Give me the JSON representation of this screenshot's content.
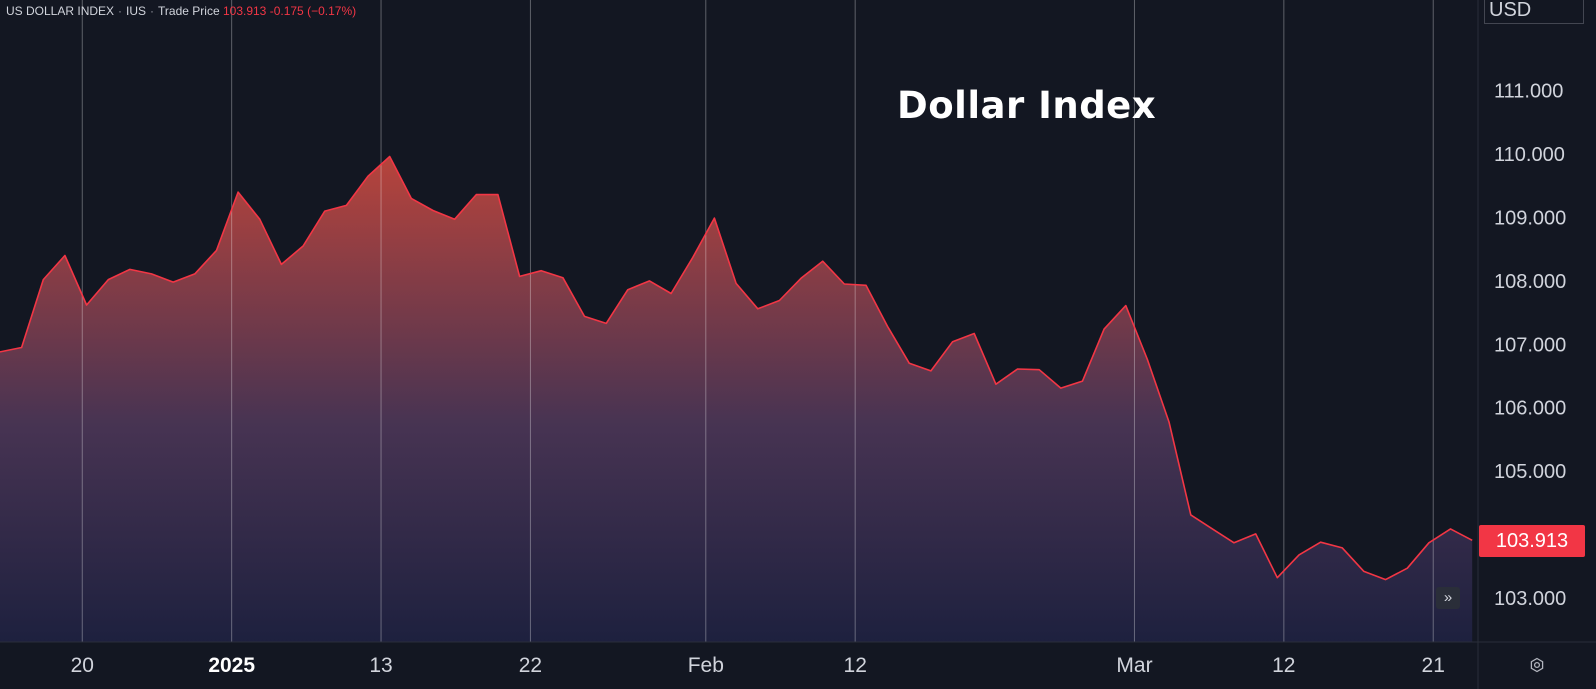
{
  "header": {
    "symbol": "US DOLLAR INDEX",
    "exchange": "IUS",
    "price_type": "Trade Price",
    "last": "103.913",
    "change": "-0.175",
    "change_pct": "(−0.17%)"
  },
  "currency": "USD",
  "last_price_label": "103.913",
  "icons": {
    "scroll": "double-chevron-right-icon",
    "settings": "gear-icon"
  },
  "colors": {
    "background": "#131722",
    "line": "#f23645",
    "fill_top": "#c0463d",
    "fill_bottom": "#1e2140",
    "grid": "#ffffff",
    "text": "#d1d4dc"
  },
  "chart_data": {
    "type": "area",
    "title": "Dollar Index",
    "ylim": [
      102.5,
      112.0
    ],
    "yticks": [
      103,
      104,
      105,
      106,
      107,
      108,
      109,
      110,
      111
    ],
    "ytick_labels": [
      "103.000",
      "104.000",
      "105.000",
      "106.000",
      "107.000",
      "108.000",
      "109.000",
      "110.000",
      "111.000"
    ],
    "x_ticks": [
      {
        "label": "20",
        "index": 3.8,
        "bold": false
      },
      {
        "label": "2025",
        "index": 10.7,
        "bold": true
      },
      {
        "label": "13",
        "index": 17.6,
        "bold": false
      },
      {
        "label": "22",
        "index": 24.5,
        "bold": false
      },
      {
        "label": "Feb",
        "index": 32.6,
        "bold": false
      },
      {
        "label": "12",
        "index": 39.5,
        "bold": false
      },
      {
        "label": "Mar",
        "index": 52.4,
        "bold": false
      },
      {
        "label": "12",
        "index": 59.3,
        "bold": false
      },
      {
        "label": "21",
        "index": 66.2,
        "bold": false
      }
    ],
    "grid": "vertical",
    "values": [
      106.88,
      106.95,
      108.02,
      108.4,
      107.62,
      108.02,
      108.18,
      108.11,
      107.98,
      108.11,
      108.48,
      109.4,
      108.97,
      108.26,
      108.55,
      109.1,
      109.19,
      109.65,
      109.96,
      109.3,
      109.11,
      108.97,
      109.36,
      109.36,
      108.07,
      108.16,
      108.05,
      107.44,
      107.33,
      107.86,
      108.0,
      107.8,
      108.37,
      108.99,
      107.96,
      107.56,
      107.69,
      108.04,
      108.31,
      107.95,
      107.93,
      107.28,
      106.7,
      106.58,
      107.04,
      107.17,
      106.37,
      106.61,
      106.6,
      106.31,
      106.42,
      107.24,
      107.61,
      106.76,
      105.77,
      104.31,
      104.09,
      103.87,
      104.01,
      103.32,
      103.68,
      103.88,
      103.79,
      103.42,
      103.29,
      103.47,
      103.87,
      104.09,
      103.91
    ]
  }
}
